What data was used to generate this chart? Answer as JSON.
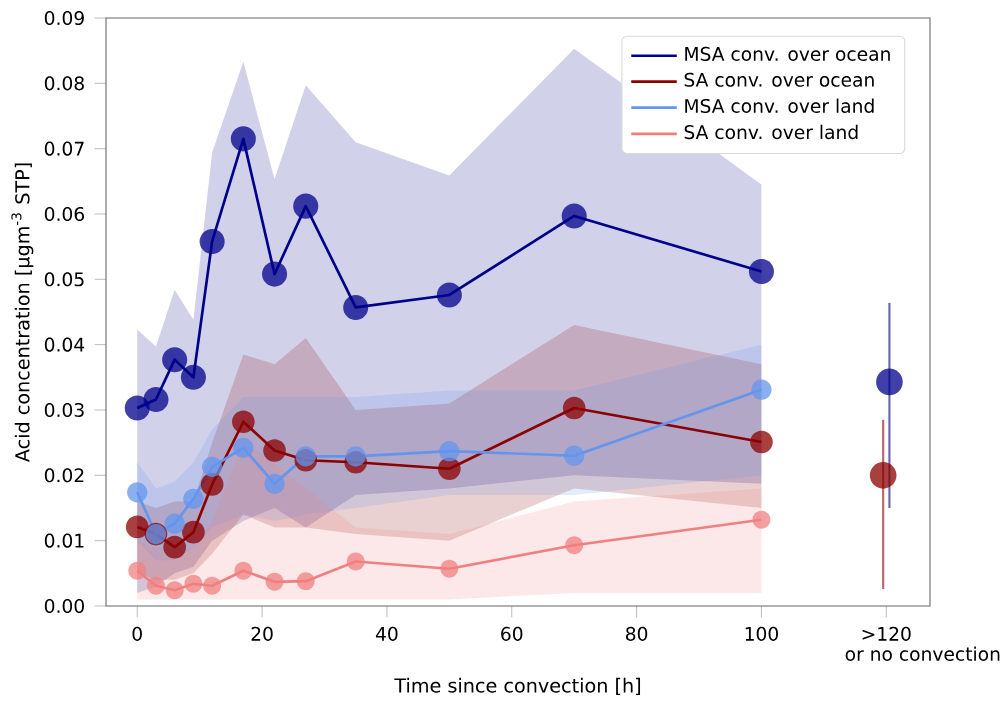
{
  "chart_data": {
    "type": "line",
    "xlabel": "Time since convection [h]",
    "ylabel": "Acid concentration [µgm$^{-3}$ STP]",
    "x": [
      0,
      3,
      6,
      9,
      12,
      17,
      22,
      27,
      35,
      50,
      70,
      100
    ],
    "series": [
      {
        "name": "MSA conv. over ocean",
        "color": "#00008b",
        "values": [
          0.0303,
          0.0316,
          0.0377,
          0.035,
          0.0558,
          0.0715,
          0.0508,
          0.0612,
          0.0457,
          0.0476,
          0.0597,
          0.0512
        ],
        "lower": [
          0.002,
          0.003,
          0.005,
          0.006,
          0.01,
          0.013,
          0.015,
          0.012,
          0.017,
          0.018,
          0.02,
          0.0187
        ],
        "upper": [
          0.0423,
          0.0397,
          0.0484,
          0.0438,
          0.0694,
          0.0833,
          0.0653,
          0.0797,
          0.071,
          0.0659,
          0.0853,
          0.0645
        ]
      },
      {
        "name": "SA conv. over ocean",
        "color": "#8b0000",
        "values": [
          0.0121,
          0.011,
          0.009,
          0.0113,
          0.0186,
          0.0282,
          0.0238,
          0.0223,
          0.022,
          0.021,
          0.0303,
          0.0251
        ],
        "lower": [
          0.005,
          0.004,
          0.004,
          0.005,
          0.008,
          0.014,
          0.012,
          0.012,
          0.011,
          0.01,
          0.018,
          0.015
        ],
        "upper": [
          0.016,
          0.015,
          0.016,
          0.016,
          0.025,
          0.0385,
          0.037,
          0.041,
          0.03,
          0.031,
          0.043,
          0.037
        ]
      },
      {
        "name": "MSA conv. over land",
        "color": "#6495ed",
        "values": [
          0.0174,
          0.011,
          0.0126,
          0.0164,
          0.0213,
          0.0242,
          0.0187,
          0.0229,
          0.0229,
          0.0237,
          0.023,
          0.0331
        ],
        "lower": [
          0.01,
          0.007,
          0.007,
          0.009,
          0.012,
          0.014,
          0.013,
          0.014,
          0.015,
          0.017,
          0.017,
          0.02
        ],
        "upper": [
          0.022,
          0.018,
          0.019,
          0.022,
          0.027,
          0.032,
          0.032,
          0.032,
          0.032,
          0.033,
          0.033,
          0.04
        ]
      },
      {
        "name": "SA conv. over land",
        "color": "#f08080",
        "values": [
          0.0054,
          0.0031,
          0.0024,
          0.0034,
          0.0031,
          0.0054,
          0.0037,
          0.0038,
          0.0068,
          0.0057,
          0.0093,
          0.0132
        ],
        "lower": [
          0.001,
          0.001,
          0.001,
          0.001,
          0.001,
          0.001,
          0.001,
          0.001,
          0.001,
          0.001,
          0.002,
          0.002
        ],
        "upper": [
          0.01,
          0.009,
          0.008,
          0.009,
          0.013,
          0.025,
          0.022,
          0.018,
          0.012,
          0.011,
          0.016,
          0.018
        ]
      },
      {
        "type": "scatter",
        "color": "#00008b",
        "x": [
          120.5
        ],
        "values": [
          0.0343
        ],
        "errors": [
          [
            0.015,
            0.0464
          ]
        ]
      },
      {
        "type": "scatter",
        "color": "#8b0000",
        "x": [
          119.5
        ],
        "values": [
          0.02
        ],
        "errors": [
          [
            0.0026,
            0.0285
          ]
        ]
      }
    ],
    "xlim": [
      -5,
      127
    ],
    "ylim": [
      0,
      0.09
    ],
    "xticks": [
      0,
      20,
      40,
      60,
      80,
      100,
      {
        "value": 120,
        "label": ">120"
      }
    ],
    "yticks": [
      {
        "value": 0,
        "label": "0.00"
      },
      {
        "value": 0.01,
        "label": "0.01"
      },
      {
        "value": 0.02,
        "label": "0.02"
      },
      {
        "value": 0.03,
        "label": "0.03"
      },
      {
        "value": 0.04,
        "label": "0.04"
      },
      {
        "value": 0.05,
        "label": "0.05"
      },
      {
        "value": 0.06,
        "label": "0.06"
      },
      {
        "value": 0.07,
        "label": "0.07"
      },
      {
        "value": 0.08,
        "label": "0.08"
      },
      {
        "value": 0.09,
        "label": "0.09"
      }
    ],
    "annotations": [
      "or no convection"
    ],
    "marker": "circle",
    "legend": "top right"
  }
}
